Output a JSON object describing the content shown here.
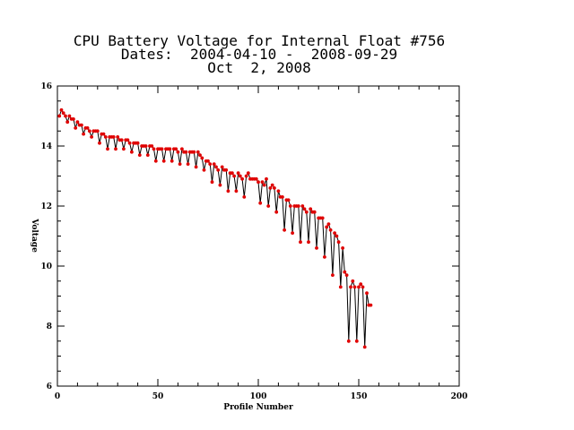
{
  "chart_data": {
    "type": "line",
    "title_lines": [
      "CPU Battery Voltage for Internal Float #756",
      "Dates:  2004-04-10 -  2008-09-29",
      "Oct  2, 2008"
    ],
    "xlabel": "Profile Number",
    "ylabel": "Voltage",
    "xlim": [
      0,
      200
    ],
    "ylim": [
      6,
      16
    ],
    "x_ticks": [
      "0",
      "50",
      "100",
      "150",
      "200"
    ],
    "y_ticks": [
      "6",
      "8",
      "10",
      "12",
      "14",
      "16"
    ],
    "grid": false,
    "line_color": "#000000",
    "marker_color": "#e00000",
    "series": [
      {
        "x": [
          1,
          2,
          3,
          4,
          5,
          6,
          7,
          8,
          9,
          10,
          11,
          12,
          13,
          14,
          15,
          16,
          17,
          18,
          19,
          20,
          21,
          22,
          23,
          24,
          25,
          26,
          27,
          28,
          29,
          30,
          31,
          32,
          33,
          34,
          35,
          36,
          37,
          38,
          39,
          40,
          41,
          42,
          43,
          44,
          45,
          46,
          47,
          48,
          49,
          50,
          51,
          52,
          53,
          54,
          55,
          56,
          57,
          58,
          59,
          60,
          61,
          62,
          63,
          64,
          65,
          66,
          67,
          68,
          69,
          70,
          71,
          72,
          73,
          74,
          75,
          76,
          77,
          78,
          79,
          80,
          81,
          82,
          83,
          84,
          85,
          86,
          87,
          88,
          89,
          90,
          91,
          92,
          93,
          94,
          95,
          96,
          97,
          98,
          99,
          100,
          101,
          102,
          103,
          104,
          105,
          106,
          107,
          108,
          109,
          110,
          111,
          112,
          113,
          114,
          115,
          116,
          117,
          118,
          119,
          120,
          121,
          122,
          123,
          124,
          125,
          126,
          127,
          128,
          129,
          130,
          131,
          132,
          133,
          134,
          135,
          136,
          137,
          138,
          139,
          140,
          141,
          142,
          143,
          144,
          145,
          146,
          147,
          148,
          149,
          150,
          151,
          152,
          153,
          154,
          155,
          156
        ],
        "y": [
          15.0,
          15.2,
          15.1,
          15.0,
          14.8,
          15.0,
          14.9,
          14.9,
          14.6,
          14.8,
          14.7,
          14.7,
          14.4,
          14.6,
          14.6,
          14.5,
          14.3,
          14.5,
          14.5,
          14.5,
          14.1,
          14.4,
          14.4,
          14.3,
          13.9,
          14.3,
          14.3,
          14.3,
          13.9,
          14.3,
          14.2,
          14.2,
          13.9,
          14.2,
          14.2,
          14.1,
          13.8,
          14.1,
          14.1,
          14.1,
          13.7,
          14.0,
          14.0,
          14.0,
          13.7,
          14.0,
          14.0,
          13.9,
          13.5,
          13.9,
          13.9,
          13.9,
          13.5,
          13.9,
          13.9,
          13.9,
          13.5,
          13.9,
          13.9,
          13.8,
          13.4,
          13.9,
          13.8,
          13.8,
          13.4,
          13.8,
          13.8,
          13.8,
          13.3,
          13.8,
          13.7,
          13.6,
          13.2,
          13.5,
          13.5,
          13.4,
          12.8,
          13.4,
          13.3,
          13.2,
          12.7,
          13.3,
          13.2,
          13.2,
          12.5,
          13.1,
          13.1,
          13.0,
          12.5,
          13.1,
          13.0,
          12.9,
          12.3,
          13.0,
          13.1,
          12.9,
          12.9,
          12.9,
          12.9,
          12.8,
          12.1,
          12.8,
          12.7,
          12.9,
          12.0,
          12.6,
          12.7,
          12.6,
          11.8,
          12.5,
          12.3,
          12.3,
          11.2,
          12.2,
          12.2,
          12.0,
          11.1,
          12.0,
          12.0,
          12.0,
          10.8,
          12.0,
          11.9,
          11.8,
          10.8,
          11.9,
          11.8,
          11.8,
          10.6,
          11.6,
          11.6,
          11.6,
          10.3,
          11.3,
          11.4,
          11.2,
          9.7,
          11.1,
          11.0,
          10.8,
          9.3,
          10.6,
          9.8,
          9.7,
          7.5,
          9.3,
          9.5,
          9.3,
          7.5,
          9.3,
          9.4,
          9.3,
          7.3,
          9.1,
          8.7,
          8.7
        ]
      }
    ]
  }
}
